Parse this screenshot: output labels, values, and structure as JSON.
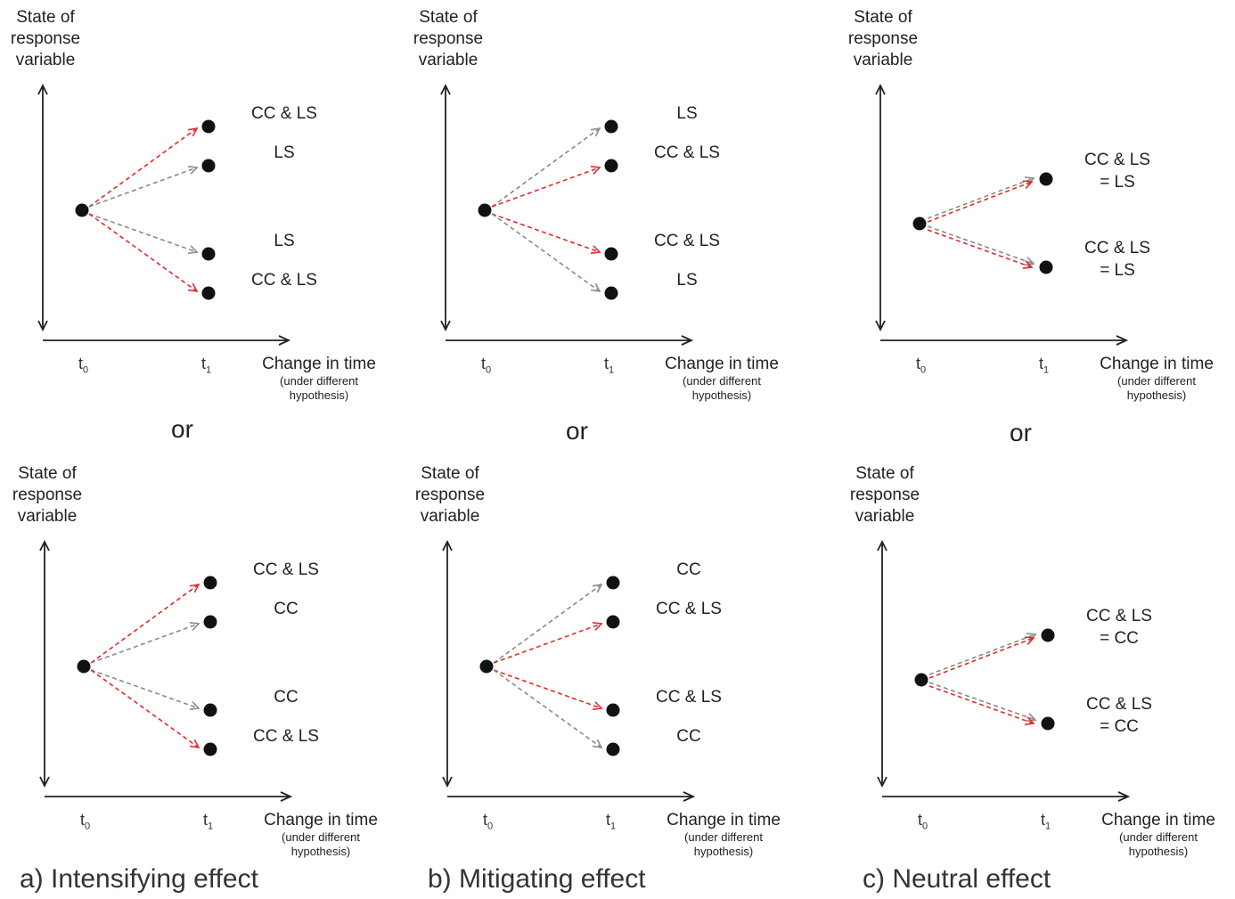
{
  "y_axis_label": [
    "State of",
    "response",
    "variable"
  ],
  "t0": "t",
  "t0_sub": "0",
  "t1": "t",
  "t1_sub": "1",
  "x_axis_label": "Change in time",
  "x_axis_sub": [
    "(under different",
    "hypothesis)"
  ],
  "or_text": "or",
  "colors": {
    "cc_ls_arrow": "#e8282a",
    "single_arrow": "#8a8a8a",
    "axis": "#222222",
    "dot": "#111111"
  },
  "panels": [
    {
      "id": "a-top",
      "effect": "intensifying",
      "labels": [
        "CC & LS",
        "LS",
        "LS",
        "CC & LS"
      ],
      "arrow_kinds": [
        "cc_ls",
        "single",
        "single",
        "cc_ls"
      ]
    },
    {
      "id": "b-top",
      "effect": "mitigating",
      "labels": [
        "LS",
        "CC & LS",
        "CC & LS",
        "LS"
      ],
      "arrow_kinds": [
        "single",
        "cc_ls",
        "cc_ls",
        "single"
      ]
    },
    {
      "id": "c-top",
      "effect": "neutral",
      "labels": [
        [
          "CC & LS",
          "= LS"
        ],
        [
          "CC & LS",
          "= LS"
        ]
      ]
    },
    {
      "id": "a-bottom",
      "effect": "intensifying",
      "labels": [
        "CC & LS",
        "CC",
        "CC",
        "CC & LS"
      ],
      "arrow_kinds": [
        "cc_ls",
        "single",
        "single",
        "cc_ls"
      ]
    },
    {
      "id": "b-bottom",
      "effect": "mitigating",
      "labels": [
        "CC",
        "CC & LS",
        "CC & LS",
        "CC"
      ],
      "arrow_kinds": [
        "single",
        "cc_ls",
        "cc_ls",
        "single"
      ]
    },
    {
      "id": "c-bottom",
      "effect": "neutral",
      "labels": [
        [
          "CC & LS",
          "= CC"
        ],
        [
          "CC & LS",
          "= CC"
        ]
      ]
    }
  ],
  "captions": [
    "a) Intensifying effect",
    "b) Mitigating effect",
    "c) Neutral effect"
  ]
}
